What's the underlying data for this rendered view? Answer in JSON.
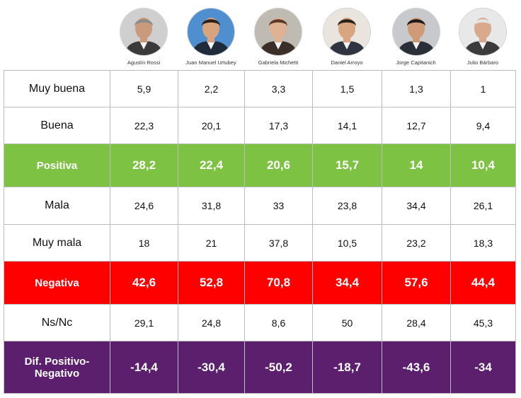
{
  "chart_data": {
    "type": "table",
    "candidates": [
      {
        "name": "Agustín Rossi",
        "photo_bg": "#cfcfcf",
        "suit": "#3a3a3a",
        "skin": "#c99a7c",
        "hair": "#8a8a8a"
      },
      {
        "name": "Juan Manuel Urtubey",
        "photo_bg": "#4f8fd0",
        "suit": "#1f2a3a",
        "skin": "#d7a47e",
        "hair": "#2b1f18"
      },
      {
        "name": "Gabriela Michetti",
        "photo_bg": "#bfbab2",
        "suit": "#3b2f2a",
        "skin": "#e0b294",
        "hair": "#5a3a26"
      },
      {
        "name": "Daniel Arroyo",
        "photo_bg": "#e9e4de",
        "suit": "#2f3440",
        "skin": "#d9a581",
        "hair": "#2a2018"
      },
      {
        "name": "Jorge Capitanich",
        "photo_bg": "#c7c9cc",
        "suit": "#2a2e36",
        "skin": "#cf9a76",
        "hair": "#1f1a17"
      },
      {
        "name": "Julio Bárbaro",
        "photo_bg": "#e8e8e8",
        "suit": "#3b3b3b",
        "skin": "#d8a98c",
        "hair": "#e3e3e3"
      }
    ],
    "rows": [
      {
        "label": "Muy buena",
        "values": [
          "5,9",
          "2,2",
          "3,3",
          "1,5",
          "1,3",
          "1"
        ],
        "highlight": null
      },
      {
        "label": "Buena",
        "values": [
          "22,3",
          "20,1",
          "17,3",
          "14,1",
          "12,7",
          "9,4"
        ],
        "highlight": null
      },
      {
        "label": "Positiva",
        "values": [
          "28,2",
          "22,4",
          "20,6",
          "15,7",
          "14",
          "10,4"
        ],
        "highlight": "#7dc242"
      },
      {
        "label": "Mala",
        "values": [
          "24,6",
          "31,8",
          "33",
          "23,8",
          "34,4",
          "26,1"
        ],
        "highlight": null
      },
      {
        "label": "Muy mala",
        "values": [
          "18",
          "21",
          "37,8",
          "10,5",
          "23,2",
          "18,3"
        ],
        "highlight": null
      },
      {
        "label": "Negativa",
        "values": [
          "42,6",
          "52,8",
          "70,8",
          "34,4",
          "57,6",
          "44,4"
        ],
        "highlight": "#ff0000"
      },
      {
        "label": "Ns/Nc",
        "values": [
          "29,1",
          "24,8",
          "8,6",
          "50",
          "28,4",
          "45,3"
        ],
        "highlight": null
      },
      {
        "label": "Dif. Positivo-\nNegativo",
        "values": [
          "-14,4",
          "-30,4",
          "-50,2",
          "-18,7",
          "-43,6",
          "-34"
        ],
        "highlight": "#5b1f6e"
      }
    ]
  }
}
